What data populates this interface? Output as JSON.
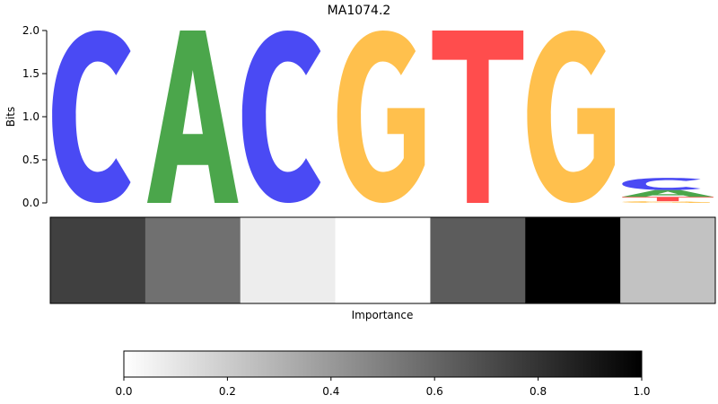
{
  "chart_data": [
    {
      "type": "sequence-logo",
      "title": "MA1074.2",
      "ylabel": "Bits",
      "ylim": [
        0,
        2.0
      ],
      "yticks": [
        "0.0",
        "0.5",
        "1.0",
        "1.5",
        "2.0"
      ],
      "grid": false,
      "base_colors": {
        "A": "#4ba64b",
        "C": "#4a4af4",
        "G": "#ffc04d",
        "T": "#ff4d4d"
      },
      "positions": [
        {
          "stack": [
            {
              "base": "C",
              "bits": 2.0
            }
          ]
        },
        {
          "stack": [
            {
              "base": "A",
              "bits": 2.0
            }
          ]
        },
        {
          "stack": [
            {
              "base": "C",
              "bits": 2.0
            }
          ]
        },
        {
          "stack": [
            {
              "base": "G",
              "bits": 2.0
            }
          ]
        },
        {
          "stack": [
            {
              "base": "T",
              "bits": 2.0
            }
          ]
        },
        {
          "stack": [
            {
              "base": "G",
              "bits": 2.0
            }
          ]
        },
        {
          "stack": [
            {
              "base": "G",
              "bits": 0.02
            },
            {
              "base": "T",
              "bits": 0.05
            },
            {
              "base": "A",
              "bits": 0.08
            },
            {
              "base": "C",
              "bits": 0.14
            }
          ]
        }
      ]
    },
    {
      "type": "heatmap",
      "xlabel": "Importance",
      "colormap": "gray_r",
      "values": [
        0.75,
        0.56,
        0.07,
        0.0,
        0.64,
        1.0,
        0.24
      ]
    },
    {
      "type": "colorbar",
      "range": [
        0,
        1
      ],
      "tick_labels": [
        "0.0",
        "0.2",
        "0.4",
        "0.6",
        "0.8",
        "1.0"
      ],
      "tick_values": [
        0,
        0.2,
        0.4,
        0.6,
        0.8,
        1.0
      ]
    }
  ]
}
